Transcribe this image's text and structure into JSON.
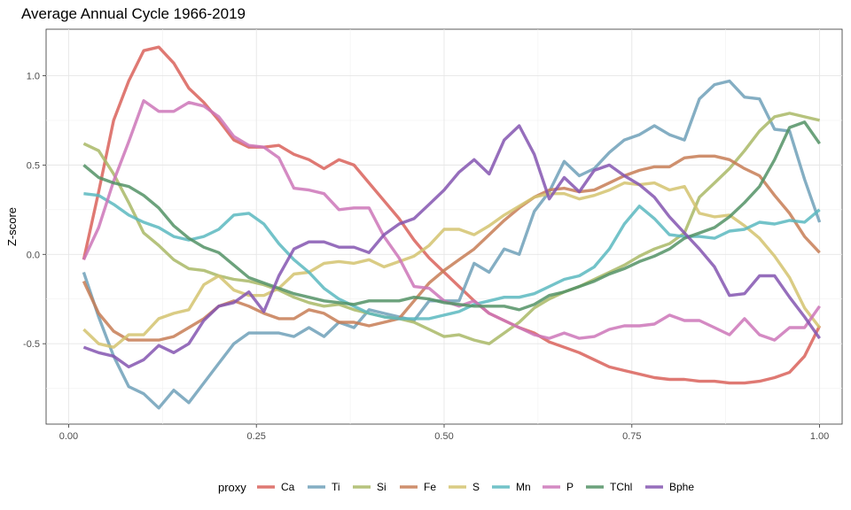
{
  "chart_data": {
    "type": "line",
    "title": "Average Annual Cycle 1966-2019",
    "xlabel": "",
    "ylabel": "Z-score",
    "xlim": [
      -0.03,
      1.03
    ],
    "ylim": [
      -0.95,
      1.26
    ],
    "xticks": [
      0.0,
      0.25,
      0.5,
      0.75,
      1.0
    ],
    "xtick_labels": [
      "0.00",
      "0.25",
      "0.50",
      "0.75",
      "1.00"
    ],
    "yticks": [
      -0.5,
      0.0,
      0.5,
      1.0
    ],
    "ytick_labels": [
      "-0.5",
      "0.0",
      "0.5",
      "1.0"
    ],
    "grid": true,
    "legend_title": "proxy",
    "legend_position": "bottom",
    "series": [
      {
        "name": "Ca",
        "color": "#d9625a",
        "x": [
          0.02,
          0.04,
          0.06,
          0.08,
          0.1,
          0.12,
          0.14,
          0.16,
          0.18,
          0.2,
          0.22,
          0.24,
          0.26,
          0.28,
          0.3,
          0.32,
          0.34,
          0.36,
          0.38,
          0.4,
          0.42,
          0.44,
          0.46,
          0.48,
          0.5,
          0.52,
          0.54,
          0.56,
          0.58,
          0.6,
          0.62,
          0.64,
          0.66,
          0.68,
          0.7,
          0.72,
          0.74,
          0.76,
          0.78,
          0.8,
          0.82,
          0.84,
          0.86,
          0.88,
          0.9,
          0.92,
          0.94,
          0.96,
          0.98,
          1.0
        ],
        "y": [
          -0.03,
          0.35,
          0.75,
          0.97,
          1.14,
          1.16,
          1.07,
          0.93,
          0.85,
          0.75,
          0.64,
          0.6,
          0.6,
          0.61,
          0.56,
          0.53,
          0.48,
          0.53,
          0.5,
          0.4,
          0.3,
          0.2,
          0.08,
          -0.02,
          -0.1,
          -0.18,
          -0.26,
          -0.33,
          -0.37,
          -0.41,
          -0.44,
          -0.49,
          -0.52,
          -0.55,
          -0.59,
          -0.63,
          -0.65,
          -0.67,
          -0.69,
          -0.7,
          -0.7,
          -0.71,
          -0.71,
          -0.72,
          -0.72,
          -0.71,
          -0.69,
          -0.66,
          -0.57,
          -0.4
        ]
      },
      {
        "name": "Ti",
        "color": "#6ea0b9",
        "x": [
          0.02,
          0.04,
          0.06,
          0.08,
          0.1,
          0.12,
          0.14,
          0.16,
          0.18,
          0.2,
          0.22,
          0.24,
          0.26,
          0.28,
          0.3,
          0.32,
          0.34,
          0.36,
          0.38,
          0.4,
          0.42,
          0.44,
          0.46,
          0.48,
          0.5,
          0.52,
          0.54,
          0.56,
          0.58,
          0.6,
          0.62,
          0.64,
          0.66,
          0.68,
          0.7,
          0.72,
          0.74,
          0.76,
          0.78,
          0.8,
          0.82,
          0.84,
          0.86,
          0.88,
          0.9,
          0.92,
          0.94,
          0.96,
          0.98,
          1.0
        ],
        "y": [
          -0.1,
          -0.35,
          -0.57,
          -0.74,
          -0.78,
          -0.86,
          -0.76,
          -0.83,
          -0.72,
          -0.61,
          -0.5,
          -0.44,
          -0.44,
          -0.44,
          -0.46,
          -0.41,
          -0.46,
          -0.38,
          -0.41,
          -0.31,
          -0.33,
          -0.35,
          -0.37,
          -0.26,
          -0.26,
          -0.26,
          -0.05,
          -0.1,
          0.03,
          0.0,
          0.24,
          0.35,
          0.52,
          0.44,
          0.48,
          0.57,
          0.64,
          0.67,
          0.72,
          0.67,
          0.64,
          0.87,
          0.95,
          0.97,
          0.88,
          0.87,
          0.7,
          0.69,
          0.42,
          0.18
        ]
      },
      {
        "name": "Si",
        "color": "#a9b866",
        "x": [
          0.02,
          0.04,
          0.06,
          0.08,
          0.1,
          0.12,
          0.14,
          0.16,
          0.18,
          0.2,
          0.22,
          0.24,
          0.26,
          0.28,
          0.3,
          0.32,
          0.34,
          0.36,
          0.38,
          0.4,
          0.42,
          0.44,
          0.46,
          0.48,
          0.5,
          0.52,
          0.54,
          0.56,
          0.58,
          0.6,
          0.62,
          0.64,
          0.66,
          0.68,
          0.7,
          0.72,
          0.74,
          0.76,
          0.78,
          0.8,
          0.82,
          0.84,
          0.86,
          0.88,
          0.9,
          0.92,
          0.94,
          0.96,
          0.98,
          1.0
        ],
        "y": [
          0.62,
          0.58,
          0.45,
          0.29,
          0.12,
          0.05,
          -0.03,
          -0.08,
          -0.09,
          -0.12,
          -0.14,
          -0.15,
          -0.17,
          -0.2,
          -0.24,
          -0.27,
          -0.29,
          -0.28,
          -0.31,
          -0.33,
          -0.35,
          -0.36,
          -0.38,
          -0.42,
          -0.46,
          -0.45,
          -0.48,
          -0.5,
          -0.44,
          -0.38,
          -0.3,
          -0.25,
          -0.21,
          -0.18,
          -0.14,
          -0.1,
          -0.06,
          -0.01,
          0.03,
          0.06,
          0.12,
          0.32,
          0.4,
          0.48,
          0.58,
          0.69,
          0.77,
          0.79,
          0.77,
          0.75
        ]
      },
      {
        "name": "Fe",
        "color": "#c77c55",
        "x": [
          0.02,
          0.04,
          0.06,
          0.08,
          0.1,
          0.12,
          0.14,
          0.16,
          0.18,
          0.2,
          0.22,
          0.24,
          0.26,
          0.28,
          0.3,
          0.32,
          0.34,
          0.36,
          0.38,
          0.4,
          0.42,
          0.44,
          0.46,
          0.48,
          0.5,
          0.52,
          0.54,
          0.56,
          0.58,
          0.6,
          0.62,
          0.64,
          0.66,
          0.68,
          0.7,
          0.72,
          0.74,
          0.76,
          0.78,
          0.8,
          0.82,
          0.84,
          0.86,
          0.88,
          0.9,
          0.92,
          0.94,
          0.96,
          0.98,
          1.0
        ],
        "y": [
          -0.15,
          -0.33,
          -0.43,
          -0.48,
          -0.48,
          -0.48,
          -0.46,
          -0.41,
          -0.36,
          -0.29,
          -0.26,
          -0.29,
          -0.33,
          -0.36,
          -0.36,
          -0.31,
          -0.33,
          -0.38,
          -0.38,
          -0.4,
          -0.38,
          -0.36,
          -0.26,
          -0.16,
          -0.09,
          -0.03,
          0.03,
          0.11,
          0.19,
          0.26,
          0.32,
          0.36,
          0.37,
          0.35,
          0.36,
          0.4,
          0.44,
          0.47,
          0.49,
          0.49,
          0.54,
          0.55,
          0.55,
          0.53,
          0.48,
          0.44,
          0.33,
          0.23,
          0.1,
          0.01
        ]
      },
      {
        "name": "S",
        "color": "#d4c36e",
        "x": [
          0.02,
          0.04,
          0.06,
          0.08,
          0.1,
          0.12,
          0.14,
          0.16,
          0.18,
          0.2,
          0.22,
          0.24,
          0.26,
          0.28,
          0.3,
          0.32,
          0.34,
          0.36,
          0.38,
          0.4,
          0.42,
          0.44,
          0.46,
          0.48,
          0.5,
          0.52,
          0.54,
          0.56,
          0.58,
          0.6,
          0.62,
          0.64,
          0.66,
          0.68,
          0.7,
          0.72,
          0.74,
          0.76,
          0.78,
          0.8,
          0.82,
          0.84,
          0.86,
          0.88,
          0.9,
          0.92,
          0.94,
          0.96,
          0.98,
          1.0
        ],
        "y": [
          -0.42,
          -0.5,
          -0.52,
          -0.45,
          -0.45,
          -0.36,
          -0.33,
          -0.31,
          -0.17,
          -0.12,
          -0.2,
          -0.23,
          -0.23,
          -0.19,
          -0.11,
          -0.1,
          -0.05,
          -0.04,
          -0.05,
          -0.03,
          -0.07,
          -0.04,
          -0.01,
          0.05,
          0.14,
          0.14,
          0.11,
          0.16,
          0.22,
          0.27,
          0.32,
          0.34,
          0.34,
          0.31,
          0.33,
          0.36,
          0.4,
          0.39,
          0.4,
          0.36,
          0.38,
          0.23,
          0.21,
          0.22,
          0.16,
          0.09,
          -0.01,
          -0.13,
          -0.3,
          -0.41
        ]
      },
      {
        "name": "Mn",
        "color": "#5ab9c0",
        "x": [
          0.02,
          0.04,
          0.06,
          0.08,
          0.1,
          0.12,
          0.14,
          0.16,
          0.18,
          0.2,
          0.22,
          0.24,
          0.26,
          0.28,
          0.3,
          0.32,
          0.34,
          0.36,
          0.38,
          0.4,
          0.42,
          0.44,
          0.46,
          0.48,
          0.5,
          0.52,
          0.54,
          0.56,
          0.58,
          0.6,
          0.62,
          0.64,
          0.66,
          0.68,
          0.7,
          0.72,
          0.74,
          0.76,
          0.78,
          0.8,
          0.82,
          0.84,
          0.86,
          0.88,
          0.9,
          0.92,
          0.94,
          0.96,
          0.98,
          1.0
        ],
        "y": [
          0.34,
          0.33,
          0.28,
          0.22,
          0.18,
          0.15,
          0.1,
          0.08,
          0.1,
          0.14,
          0.22,
          0.23,
          0.17,
          0.06,
          -0.03,
          -0.1,
          -0.19,
          -0.25,
          -0.29,
          -0.33,
          -0.35,
          -0.36,
          -0.36,
          -0.36,
          -0.34,
          -0.32,
          -0.28,
          -0.26,
          -0.24,
          -0.24,
          -0.22,
          -0.18,
          -0.14,
          -0.12,
          -0.07,
          0.03,
          0.17,
          0.27,
          0.2,
          0.11,
          0.1,
          0.1,
          0.09,
          0.13,
          0.14,
          0.18,
          0.17,
          0.19,
          0.18,
          0.25
        ]
      },
      {
        "name": "P",
        "color": "#cc75b9",
        "x": [
          0.02,
          0.04,
          0.06,
          0.08,
          0.1,
          0.12,
          0.14,
          0.16,
          0.18,
          0.2,
          0.22,
          0.24,
          0.26,
          0.28,
          0.3,
          0.32,
          0.34,
          0.36,
          0.38,
          0.4,
          0.42,
          0.44,
          0.46,
          0.48,
          0.5,
          0.52,
          0.54,
          0.56,
          0.58,
          0.6,
          0.62,
          0.64,
          0.66,
          0.68,
          0.7,
          0.72,
          0.74,
          0.76,
          0.78,
          0.8,
          0.82,
          0.84,
          0.86,
          0.88,
          0.9,
          0.92,
          0.94,
          0.96,
          0.98,
          1.0
        ],
        "y": [
          -0.03,
          0.15,
          0.41,
          0.63,
          0.86,
          0.8,
          0.8,
          0.85,
          0.83,
          0.77,
          0.66,
          0.61,
          0.6,
          0.54,
          0.37,
          0.36,
          0.34,
          0.25,
          0.26,
          0.26,
          0.1,
          -0.02,
          -0.18,
          -0.19,
          -0.26,
          -0.29,
          -0.26,
          -0.33,
          -0.37,
          -0.41,
          -0.45,
          -0.47,
          -0.44,
          -0.47,
          -0.46,
          -0.42,
          -0.4,
          -0.4,
          -0.39,
          -0.34,
          -0.37,
          -0.37,
          -0.41,
          -0.45,
          -0.36,
          -0.45,
          -0.48,
          -0.41,
          -0.41,
          -0.29
        ]
      },
      {
        "name": "TChl",
        "color": "#529265",
        "x": [
          0.02,
          0.04,
          0.06,
          0.08,
          0.1,
          0.12,
          0.14,
          0.16,
          0.18,
          0.2,
          0.22,
          0.24,
          0.26,
          0.28,
          0.3,
          0.32,
          0.34,
          0.36,
          0.38,
          0.4,
          0.42,
          0.44,
          0.46,
          0.48,
          0.5,
          0.52,
          0.54,
          0.56,
          0.58,
          0.6,
          0.62,
          0.64,
          0.66,
          0.68,
          0.7,
          0.72,
          0.74,
          0.76,
          0.78,
          0.8,
          0.82,
          0.84,
          0.86,
          0.88,
          0.9,
          0.92,
          0.94,
          0.96,
          0.98,
          1.0
        ],
        "y": [
          0.5,
          0.43,
          0.4,
          0.38,
          0.33,
          0.26,
          0.16,
          0.09,
          0.04,
          0.01,
          -0.06,
          -0.13,
          -0.16,
          -0.19,
          -0.22,
          -0.24,
          -0.26,
          -0.27,
          -0.28,
          -0.26,
          -0.26,
          -0.26,
          -0.24,
          -0.25,
          -0.27,
          -0.28,
          -0.29,
          -0.29,
          -0.29,
          -0.31,
          -0.28,
          -0.23,
          -0.21,
          -0.18,
          -0.15,
          -0.11,
          -0.08,
          -0.04,
          -0.01,
          0.03,
          0.09,
          0.12,
          0.15,
          0.21,
          0.29,
          0.38,
          0.53,
          0.71,
          0.74,
          0.62
        ]
      },
      {
        "name": "Bphe",
        "color": "#8455b0",
        "x": [
          0.02,
          0.04,
          0.06,
          0.08,
          0.1,
          0.12,
          0.14,
          0.16,
          0.18,
          0.2,
          0.22,
          0.24,
          0.26,
          0.28,
          0.3,
          0.32,
          0.34,
          0.36,
          0.38,
          0.4,
          0.42,
          0.44,
          0.46,
          0.48,
          0.5,
          0.52,
          0.54,
          0.56,
          0.58,
          0.6,
          0.62,
          0.64,
          0.66,
          0.68,
          0.7,
          0.72,
          0.74,
          0.76,
          0.78,
          0.8,
          0.82,
          0.84,
          0.86,
          0.88,
          0.9,
          0.92,
          0.94,
          0.96,
          0.98,
          1.0
        ],
        "y": [
          -0.52,
          -0.55,
          -0.57,
          -0.63,
          -0.59,
          -0.51,
          -0.55,
          -0.5,
          -0.37,
          -0.29,
          -0.27,
          -0.21,
          -0.32,
          -0.12,
          0.03,
          0.07,
          0.07,
          0.04,
          0.04,
          0.01,
          0.11,
          0.17,
          0.2,
          0.28,
          0.36,
          0.46,
          0.53,
          0.45,
          0.64,
          0.72,
          0.56,
          0.31,
          0.43,
          0.35,
          0.47,
          0.5,
          0.44,
          0.39,
          0.32,
          0.21,
          0.12,
          0.03,
          -0.07,
          -0.23,
          -0.22,
          -0.12,
          -0.12,
          -0.24,
          -0.35,
          -0.47
        ]
      }
    ]
  }
}
